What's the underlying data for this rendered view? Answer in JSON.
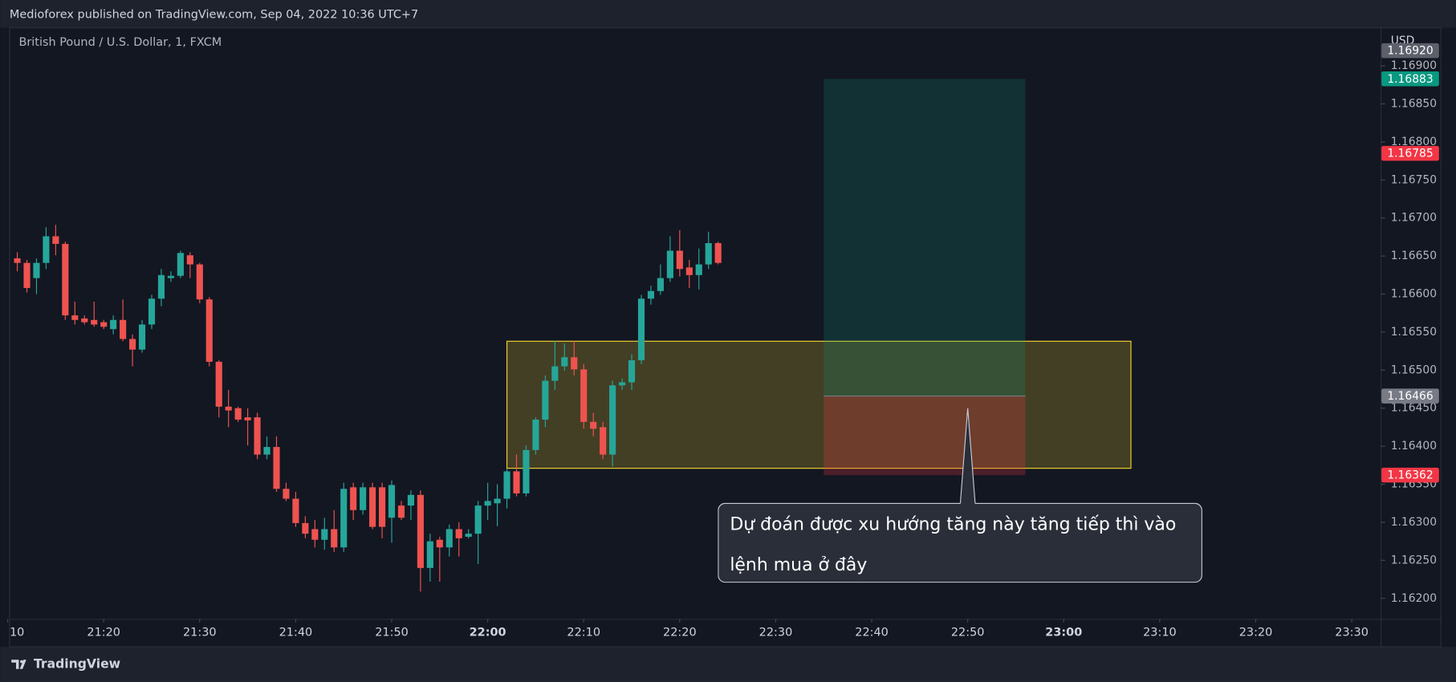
{
  "header": {
    "publisher": "Medioforex published on TradingView.com, Sep 04, 2022 10:36 UTC+7",
    "brand": "TradingView"
  },
  "chart_data": {
    "type": "candlestick",
    "title": "British Pound / U.S. Dollar, 1, FXCM",
    "currency": "USD",
    "up_color": "#26a69a",
    "down_color": "#ef5350",
    "xlim": [
      "21:10",
      "23:33"
    ],
    "xticks": [
      {
        "value": "21:10",
        "label": "10"
      },
      "21:20",
      "21:30",
      "21:40",
      "21:50",
      "22:00",
      "22:10",
      "22:20",
      "22:30",
      "22:40",
      "22:50",
      "23:00",
      "23:10",
      "23:20",
      "23:30"
    ],
    "ylim": [
      1.16173,
      1.1695
    ],
    "yticks": [
      {
        "value": 1.162,
        "label": "1.16200"
      },
      {
        "value": 1.1625,
        "label": "1.16250"
      },
      {
        "value": 1.163,
        "label": "1.16300"
      },
      {
        "value": 1.1635,
        "label": "1.16350"
      },
      {
        "value": 1.164,
        "label": "1.16400"
      },
      {
        "value": 1.1645,
        "label": "1.16450"
      },
      {
        "value": 1.165,
        "label": "1.16500"
      },
      {
        "value": 1.1655,
        "label": "1.16550"
      },
      {
        "value": 1.166,
        "label": "1.16600"
      },
      {
        "value": 1.1665,
        "label": "1.16650"
      },
      {
        "value": 1.167,
        "label": "1.16700"
      },
      {
        "value": 1.1675,
        "label": "1.16750"
      },
      {
        "value": 1.168,
        "label": "1.16800"
      },
      {
        "value": 1.1685,
        "label": "1.16850"
      },
      {
        "value": 1.169,
        "label": "1.16900"
      }
    ],
    "x": [
      "21:11",
      "21:12",
      "21:13",
      "21:14",
      "21:15",
      "21:16",
      "21:17",
      "21:18",
      "21:19",
      "21:20",
      "21:21",
      "21:22",
      "21:23",
      "21:24",
      "21:25",
      "21:26",
      "21:27",
      "21:28",
      "21:29",
      "21:30",
      "21:31",
      "21:32",
      "21:33",
      "21:34",
      "21:35",
      "21:36",
      "21:37",
      "21:38",
      "21:39",
      "21:40",
      "21:41",
      "21:42",
      "21:43",
      "21:44",
      "21:45",
      "21:46",
      "21:47",
      "21:48",
      "21:49",
      "21:50",
      "21:51",
      "21:52",
      "21:53",
      "21:54",
      "21:55",
      "21:56",
      "21:57",
      "21:58",
      "21:59",
      "22:00",
      "22:01",
      "22:02",
      "22:03",
      "22:04",
      "22:05",
      "22:06",
      "22:07",
      "22:08",
      "22:09",
      "22:10",
      "22:11",
      "22:12",
      "22:13",
      "22:14",
      "22:15",
      "22:16",
      "22:17",
      "22:18",
      "22:19",
      "22:20",
      "22:21",
      "22:22",
      "22:23",
      "22:24"
    ],
    "open": [
      1.16647,
      1.16641,
      1.16621,
      1.16641,
      1.16676,
      1.16666,
      1.16572,
      1.16568,
      1.16566,
      1.16563,
      1.16554,
      1.16566,
      1.16541,
      1.16527,
      1.1656,
      1.16594,
      1.16621,
      1.16624,
      1.16651,
      1.16639,
      1.16593,
      1.16511,
      1.16452,
      1.1645,
      1.16438,
      1.16438,
      1.16389,
      1.16399,
      1.16344,
      1.16331,
      1.16299,
      1.16291,
      1.16277,
      1.16291,
      1.16267,
      1.16346,
      1.16316,
      1.16346,
      1.16346,
      1.16306,
      1.16322,
      1.16322,
      1.16336,
      1.1624,
      1.16277,
      1.16267,
      1.16291,
      1.16281,
      1.16285,
      1.16322,
      1.16325,
      1.16331,
      1.16367,
      1.16338,
      1.16395,
      1.16435,
      1.16486,
      1.16505,
      1.16517,
      1.16501,
      1.16432,
      1.16425,
      1.16389,
      1.1648,
      1.16484,
      1.16513,
      1.16594,
      1.16604,
      1.16621,
      1.16657,
      1.16635,
      1.16625,
      1.16639,
      1.16667
    ],
    "high": [
      1.16655,
      1.16645,
      1.16647,
      1.16688,
      1.16691,
      1.16669,
      1.1659,
      1.16572,
      1.1659,
      1.16566,
      1.16572,
      1.16593,
      1.16547,
      1.16566,
      1.16599,
      1.16633,
      1.1663,
      1.16657,
      1.16655,
      1.16641,
      1.16596,
      1.16513,
      1.16474,
      1.16452,
      1.1645,
      1.16444,
      1.16413,
      1.16413,
      1.16352,
      1.1634,
      1.16308,
      1.16303,
      1.16306,
      1.16316,
      1.16352,
      1.16352,
      1.16352,
      1.16352,
      1.16352,
      1.16355,
      1.16328,
      1.16342,
      1.16342,
      1.16285,
      1.16281,
      1.16297,
      1.163,
      1.16291,
      1.16328,
      1.16352,
      1.1635,
      1.16371,
      1.16389,
      1.16401,
      1.16438,
      1.16493,
      1.16538,
      1.16535,
      1.16538,
      1.16508,
      1.16444,
      1.16432,
      1.16486,
      1.16489,
      1.16521,
      1.16599,
      1.16611,
      1.16639,
      1.16676,
      1.16684,
      1.16645,
      1.1666,
      1.16682,
      1.16669
    ],
    "low": [
      1.1663,
      1.16602,
      1.166,
      1.16633,
      1.16651,
      1.16566,
      1.1656,
      1.1656,
      1.16557,
      1.16554,
      1.16547,
      1.16538,
      1.16505,
      1.16523,
      1.16554,
      1.16584,
      1.16616,
      1.16621,
      1.16621,
      1.16588,
      1.16505,
      1.16438,
      1.16425,
      1.16432,
      1.16401,
      1.16383,
      1.16383,
      1.1634,
      1.16328,
      1.16294,
      1.16279,
      1.16267,
      1.16264,
      1.16261,
      1.16261,
      1.16303,
      1.1631,
      1.16291,
      1.16279,
      1.16273,
      1.16303,
      1.16303,
      1.16209,
      1.16222,
      1.16222,
      1.16255,
      1.16255,
      1.16279,
      1.16245,
      1.16303,
      1.16295,
      1.16318,
      1.16334,
      1.16334,
      1.16389,
      1.16425,
      1.16474,
      1.16499,
      1.16493,
      1.16423,
      1.16413,
      1.16383,
      1.16373,
      1.16474,
      1.16474,
      1.16508,
      1.16586,
      1.16599,
      1.16616,
      1.16623,
      1.16608,
      1.16606,
      1.16633,
      1.16639
    ],
    "close": [
      1.16641,
      1.16608,
      1.16641,
      1.16676,
      1.16666,
      1.16572,
      1.16566,
      1.16563,
      1.1656,
      1.16557,
      1.16566,
      1.16541,
      1.16527,
      1.1656,
      1.16594,
      1.16625,
      1.16624,
      1.16654,
      1.16639,
      1.16593,
      1.16511,
      1.16452,
      1.16447,
      1.16435,
      1.16434,
      1.16389,
      1.16399,
      1.16344,
      1.16331,
      1.16299,
      1.16285,
      1.16277,
      1.16291,
      1.16267,
      1.16344,
      1.16316,
      1.16346,
      1.16294,
      1.16294,
      1.16349,
      1.16306,
      1.16336,
      1.1624,
      1.16275,
      1.16267,
      1.16291,
      1.16279,
      1.16285,
      1.16322,
      1.16328,
      1.16331,
      1.16367,
      1.16338,
      1.16395,
      1.16435,
      1.16486,
      1.16505,
      1.16517,
      1.16501,
      1.16432,
      1.16423,
      1.16389,
      1.1648,
      1.16484,
      1.16513,
      1.16594,
      1.16604,
      1.16621,
      1.16657,
      1.16633,
      1.16625,
      1.16639,
      1.16667,
      1.16641
    ],
    "zone": {
      "start": "22:02",
      "end": "23:07",
      "top": 1.16538,
      "bottom": 1.16371,
      "color": "#f2d22e"
    },
    "position": {
      "start": "22:35",
      "end": "22:56",
      "entry": 1.16466,
      "target": 1.16883,
      "stop": 1.16362,
      "profit_color": "#089981",
      "loss_color": "#f23645",
      "entry_color": "#787b86"
    },
    "price_badges": [
      {
        "value": 1.1692,
        "label": "1.16920",
        "color": "#5d606b"
      },
      {
        "value": 1.16785,
        "label": "1.16785",
        "color": "#f23645"
      }
    ],
    "annotation": {
      "text": "Dự đoán được xu hướng tăng này tăng tiếp thì vào lệnh mua ở đây",
      "x": "22:50",
      "y": 1.1645
    }
  }
}
